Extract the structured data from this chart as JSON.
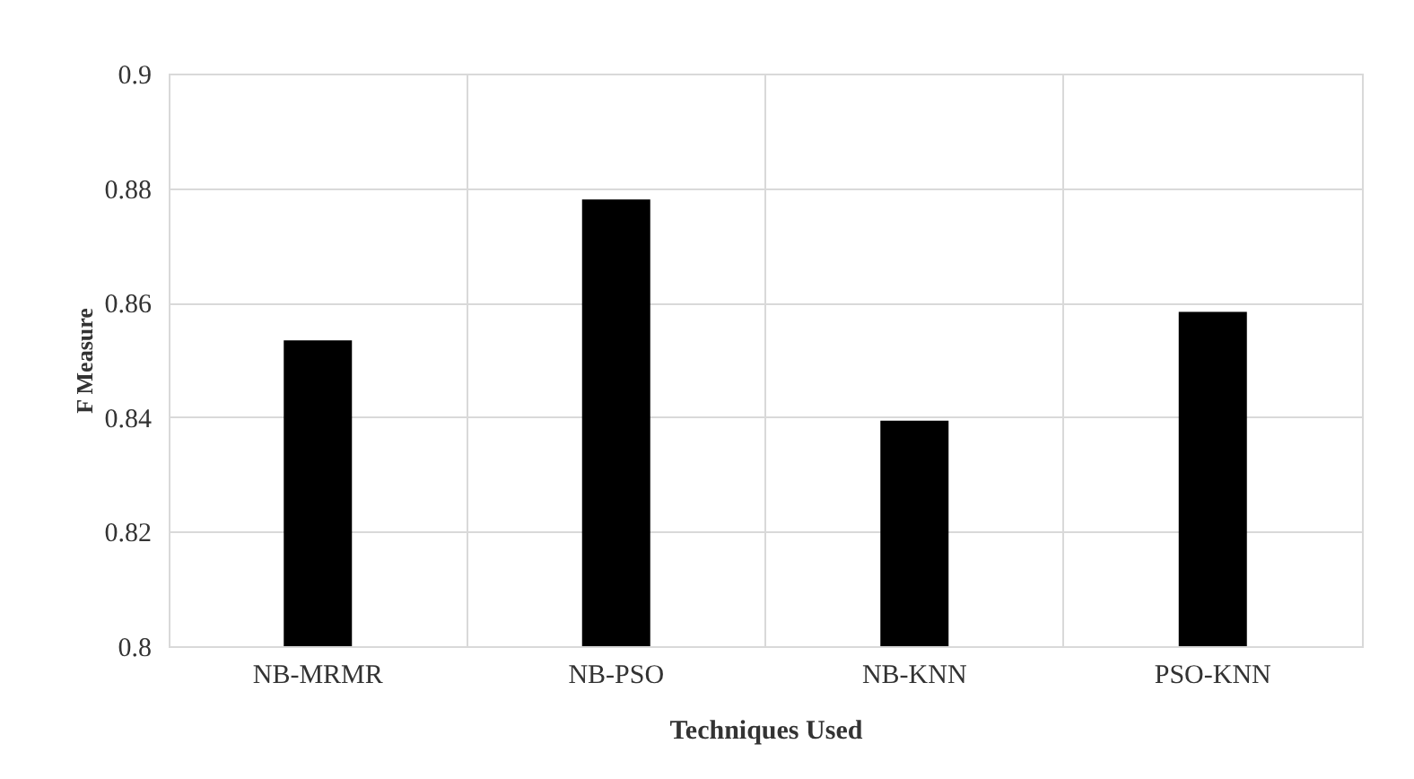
{
  "chart_data": {
    "type": "bar",
    "xlabel": "Techniques Used",
    "ylabel": "F Measure",
    "categories": [
      "NB-MRMR",
      "NB-PSO",
      "NB-KNN",
      "PSO-KNN"
    ],
    "values": [
      0.8534,
      0.878,
      0.8394,
      0.8584
    ],
    "color": "#000000",
    "ylim": [
      0.8,
      0.9
    ],
    "yticks": [
      {
        "value": 0.8,
        "label": "0.8"
      },
      {
        "value": 0.82,
        "label": "0.82"
      },
      {
        "value": 0.84,
        "label": "0.84"
      },
      {
        "value": 0.86,
        "label": "0.86"
      },
      {
        "value": 0.88,
        "label": "0.88"
      },
      {
        "value": 0.9,
        "label": "0.9"
      }
    ],
    "grid": true
  }
}
